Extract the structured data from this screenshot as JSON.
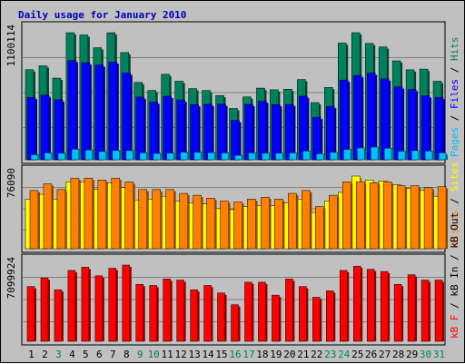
{
  "title": "Daily usage for January 2010",
  "colors": {
    "hits": "#00805c",
    "files": "#0000ff",
    "pages": "#00c0ff",
    "visits": "#ffff00",
    "sites": "#ff8000",
    "kbytes": "#ff0000",
    "weekday_label": "#000000",
    "weekend_label": "#00805c",
    "background": "#c0c0c0",
    "title": "#0000c0"
  },
  "chart_data": [
    {
      "type": "bar",
      "panel": "hits",
      "categories": [
        "1",
        "2",
        "3",
        "4",
        "5",
        "6",
        "7",
        "8",
        "9",
        "10",
        "11",
        "12",
        "13",
        "14",
        "15",
        "16",
        "17",
        "18",
        "19",
        "20",
        "21",
        "22",
        "23",
        "24",
        "25",
        "26",
        "27",
        "28",
        "29",
        "30",
        "31"
      ],
      "weekend_days": [
        "3",
        "9",
        "10",
        "16",
        "17",
        "23",
        "24",
        "30",
        "31"
      ],
      "ymax_label": "1100114",
      "ylim": [
        0,
        1100114
      ],
      "side_label": [
        "Pages",
        "Files",
        "Hits"
      ],
      "side_label_separator": " / ",
      "series": [
        {
          "name": "Hits",
          "values": [
            780000,
            813000,
            707000,
            1100114,
            1080000,
            970000,
            1100000,
            928000,
            670000,
            600000,
            740000,
            680000,
            616000,
            600000,
            556000,
            444000,
            544000,
            620000,
            606000,
            611000,
            695000,
            495000,
            626000,
            1010000,
            1100000,
            1007000,
            977000,
            856000,
            779000,
            785000,
            680000
          ]
        },
        {
          "name": "Files",
          "values": [
            540000,
            560000,
            520000,
            860000,
            840000,
            820000,
            847000,
            751000,
            543000,
            500000,
            550000,
            518000,
            478000,
            480000,
            482000,
            342000,
            480000,
            508000,
            478000,
            480000,
            551000,
            368000,
            462000,
            690000,
            730000,
            751000,
            701000,
            631000,
            610000,
            554000,
            540000
          ]
        },
        {
          "name": "Pages",
          "values": [
            45000,
            60000,
            58000,
            92000,
            85000,
            72000,
            80000,
            80000,
            60000,
            55000,
            58000,
            66000,
            65000,
            62000,
            60000,
            39000,
            60000,
            58000,
            58000,
            60000,
            76000,
            52000,
            65000,
            90000,
            103000,
            110000,
            100000,
            75000,
            80000,
            76000,
            60000
          ]
        }
      ]
    },
    {
      "type": "bar",
      "panel": "sites",
      "categories": [
        "1",
        "2",
        "3",
        "4",
        "5",
        "6",
        "7",
        "8",
        "9",
        "10",
        "11",
        "12",
        "13",
        "14",
        "15",
        "16",
        "17",
        "18",
        "19",
        "20",
        "21",
        "22",
        "23",
        "24",
        "25",
        "26",
        "27",
        "28",
        "29",
        "30",
        "31"
      ],
      "ymax_label": "76090",
      "ylim": [
        0,
        76090
      ],
      "side_label": [
        "Visits",
        "Sites"
      ],
      "side_label_separator": " / ",
      "series": [
        {
          "name": "Visits",
          "values": [
            52000,
            57000,
            52000,
            70000,
            70000,
            62000,
            69000,
            64000,
            51000,
            52000,
            55000,
            50000,
            48000,
            47000,
            42000,
            41000,
            44000,
            45000,
            45000,
            48000,
            52000,
            38000,
            50000,
            59000,
            76090,
            72000,
            71000,
            67000,
            63000,
            61000,
            55000
          ]
        },
        {
          "name": "Sites",
          "values": [
            61000,
            68000,
            62000,
            74000,
            74000,
            72000,
            74000,
            70000,
            62000,
            62000,
            62000,
            58000,
            56000,
            53000,
            50000,
            49000,
            52000,
            54000,
            52000,
            58000,
            61000,
            44000,
            56000,
            70000,
            70000,
            69000,
            70000,
            66000,
            66000,
            64000,
            65000
          ]
        }
      ]
    },
    {
      "type": "bar",
      "panel": "kbytes",
      "categories": [
        "1",
        "2",
        "3",
        "4",
        "5",
        "6",
        "7",
        "8",
        "9",
        "10",
        "11",
        "12",
        "13",
        "14",
        "15",
        "16",
        "17",
        "18",
        "19",
        "20",
        "21",
        "22",
        "23",
        "24",
        "25",
        "26",
        "27",
        "28",
        "29",
        "30",
        "31"
      ],
      "ymax_label": "7099924",
      "ylim": [
        0,
        7099924
      ],
      "side_label": [
        "kB F",
        "kB In",
        "kB Out"
      ],
      "side_label_separator": " / ",
      "series": [
        {
          "name": "kB F",
          "values": [
            5100000,
            5900000,
            4800000,
            6600000,
            6900000,
            6100000,
            6800000,
            7099924,
            5300000,
            5200000,
            5800000,
            5700000,
            4800000,
            5200000,
            4500000,
            3400000,
            5500000,
            5500000,
            4300000,
            5800000,
            5100000,
            4100000,
            4700000,
            6600000,
            7000000,
            6700000,
            6500000,
            5300000,
            6200000,
            5700000,
            5700000
          ]
        }
      ]
    }
  ]
}
